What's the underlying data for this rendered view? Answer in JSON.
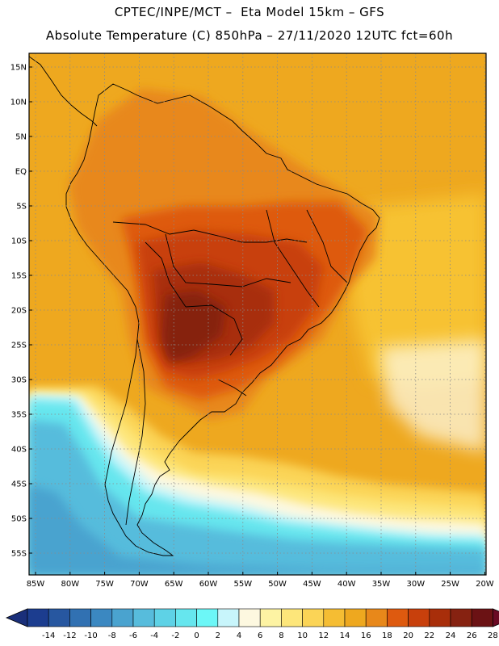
{
  "title": {
    "line1": "CPTEC/INPE/MCT –  Eta Model 15km – GFS",
    "line2": "Absolute Temperature (C) 850hPa – 27/11/2020 12UTC fct=60h"
  },
  "axes": {
    "lat_labels": [
      "15N",
      "10N",
      "5N",
      "EQ",
      "5S",
      "10S",
      "15S",
      "20S",
      "25S",
      "30S",
      "35S",
      "40S",
      "45S",
      "50S",
      "55S"
    ],
    "lon_labels": [
      "85W",
      "80W",
      "75W",
      "70W",
      "65W",
      "60W",
      "55W",
      "50W",
      "45W",
      "40W",
      "35W",
      "30W",
      "25W",
      "20W"
    ]
  },
  "colorbar": {
    "labels": [
      "-14",
      "-12",
      "-10",
      "-8",
      "-6",
      "-4",
      "-2",
      "0",
      "2",
      "4",
      "6",
      "8",
      "10",
      "12",
      "14",
      "16",
      "18",
      "20",
      "22",
      "24",
      "26",
      "28"
    ],
    "colors": [
      "#1c3d8f",
      "#2757a0",
      "#3171b2",
      "#3b88c1",
      "#4aa3cf",
      "#57bcdc",
      "#5ed2e6",
      "#66e6ee",
      "#6cf7f7",
      "#c8f5fb",
      "#fdf8e0",
      "#fdf3a3",
      "#fde67a",
      "#fbd456",
      "#f5bd33",
      "#eea81f",
      "#e8881a",
      "#de5a0f",
      "#c8400c",
      "#a82e0a",
      "#862211",
      "#6b1214"
    ],
    "low_arrow_color": "#1a2f7a",
    "high_arrow_color": "#6a0a24"
  },
  "field_colors": {
    "ocean_warm": "#f7c233",
    "ocean_orange": "#eea81f",
    "land_orange": "#e8881a",
    "land_dark_orange": "#de5a0f",
    "land_red": "#c8400c",
    "land_brown": "#a82e0a",
    "land_darkest": "#862211",
    "yellow": "#fbd456",
    "pale_yellow": "#fde67a",
    "cream": "#fdf8e0",
    "pale_cyan": "#c8f5fb",
    "cyan": "#66e6ee",
    "cyan2": "#57bcdc",
    "blue": "#4aa3cf"
  }
}
